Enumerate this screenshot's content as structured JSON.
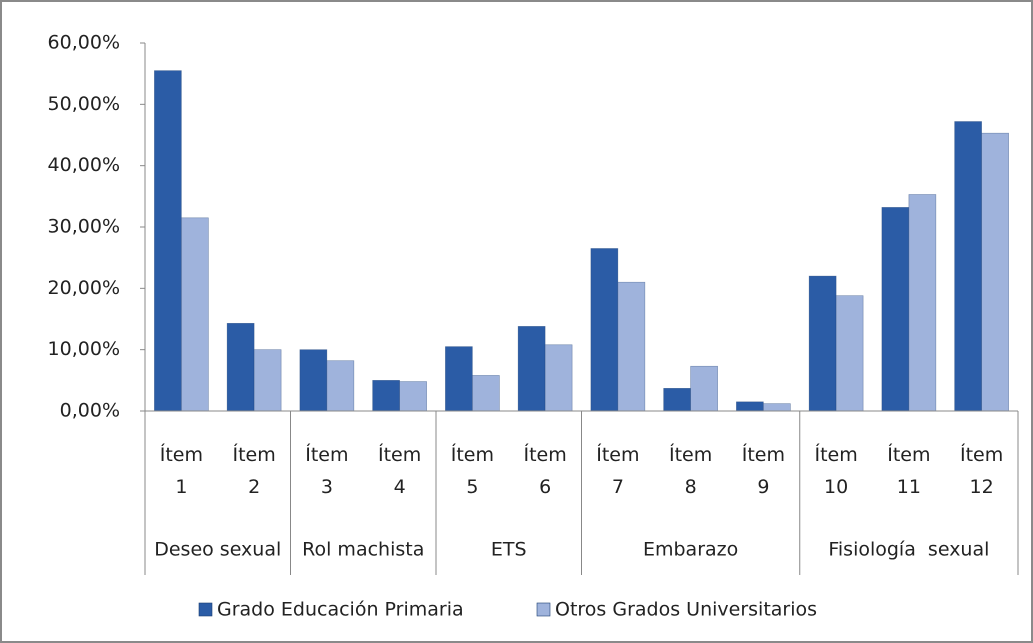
{
  "chart_data": {
    "type": "bar",
    "groups": [
      {
        "name": "Deseo sexual",
        "categories": [
          "Ítem 1",
          "Ítem 2"
        ]
      },
      {
        "name": "Rol machista",
        "categories": [
          "Ítem 3",
          "Ítem 4"
        ]
      },
      {
        "name": "ETS",
        "categories": [
          "Ítem 5",
          "Ítem 6"
        ]
      },
      {
        "name": "Embarazo",
        "categories": [
          "Ítem 7",
          "Ítem 8",
          "Ítem 9"
        ]
      },
      {
        "name": "Fisiología  sexual",
        "categories": [
          "Ítem 10",
          "Ítem 11",
          "Ítem 12"
        ]
      }
    ],
    "series": [
      {
        "name": "Grado Educación Primaria",
        "color": "#2b5ca6",
        "values": [
          55.5,
          14.3,
          10.0,
          5.0,
          10.5,
          13.8,
          26.5,
          3.7,
          1.5,
          22.0,
          33.2,
          47.2
        ]
      },
      {
        "name": "Otros Grados Universitarios",
        "color": "#9fb3dc",
        "values": [
          31.5,
          10.0,
          8.2,
          4.8,
          5.8,
          10.8,
          21.0,
          7.3,
          1.2,
          18.8,
          35.3,
          45.3
        ]
      }
    ],
    "ylim": [
      0,
      60
    ],
    "yticks": [
      {
        "value": 0,
        "label": "0,00%"
      },
      {
        "value": 10,
        "label": "10,00%"
      },
      {
        "value": 20,
        "label": "20,00%"
      },
      {
        "value": 30,
        "label": "30,00%"
      },
      {
        "value": 40,
        "label": "40,00%"
      },
      {
        "value": 50,
        "label": "50,00%"
      },
      {
        "value": 60,
        "label": "60,00%"
      }
    ],
    "legend": "bottom"
  }
}
